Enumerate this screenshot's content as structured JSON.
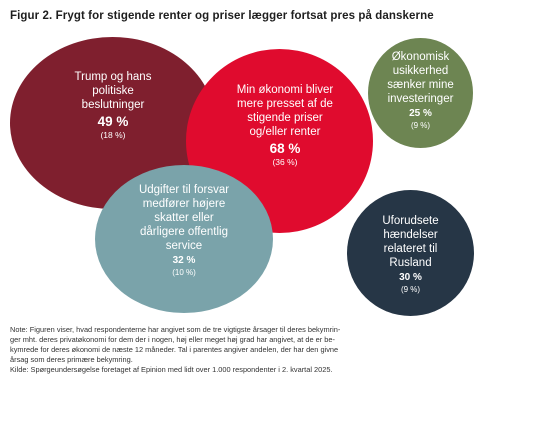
{
  "title": "Figur 2. Frygt for stigende renter og priser lægger fortsat pres på danskerne",
  "colors": {
    "trump": "#7f1f2e",
    "economy": "#e00b2e",
    "uncertainty": "#6d8552",
    "expenses": "#7aa3aa",
    "russia": "#263646"
  },
  "bubbles": {
    "trump": {
      "lines": [
        "Trump og hans",
        "politiske",
        "beslutninger"
      ],
      "value": "49 %",
      "previous": "(18 %)"
    },
    "economy": {
      "lines": [
        "Min økonomi bliver",
        "mere presset af de",
        "stigende priser",
        "og/eller renter"
      ],
      "value": "68 %",
      "previous": "(36 %)"
    },
    "uncertainty": {
      "lines": [
        "Økonomisk",
        "usikkerhed",
        "sænker mine",
        "investeringer"
      ],
      "value": "25 %",
      "previous": "(9 %)"
    },
    "expenses": {
      "lines": [
        "Udgifter til forsvar",
        "medfører højere",
        "skatter eller",
        "dårligere offentlig",
        "service"
      ],
      "value": "32 %",
      "previous": "(10 %)"
    },
    "russia": {
      "lines": [
        "Uforudsete",
        "hændelser",
        "relateret til",
        "Rusland"
      ],
      "value": "30 %",
      "previous": "(9 %)"
    }
  },
  "note": {
    "lines": [
      "Note: Figuren viser, hvad respondenterne har angivet som de tre vigtigste årsager til deres bekymrin-",
      "ger mht. deres privatøkonomi for dem der i nogen, høj eller meget høj grad har angivet, at de er be-",
      "kymrede for deres økonomi de næste 12 måneder. Tal i parentes angiver andelen, der har den givne",
      "årsag som deres primære bekymring.",
      "Kilde: Spørgeundersøgelse foretaget af Epinion med lidt over 1.000 respondenter i 2. kvartal 2025."
    ]
  }
}
